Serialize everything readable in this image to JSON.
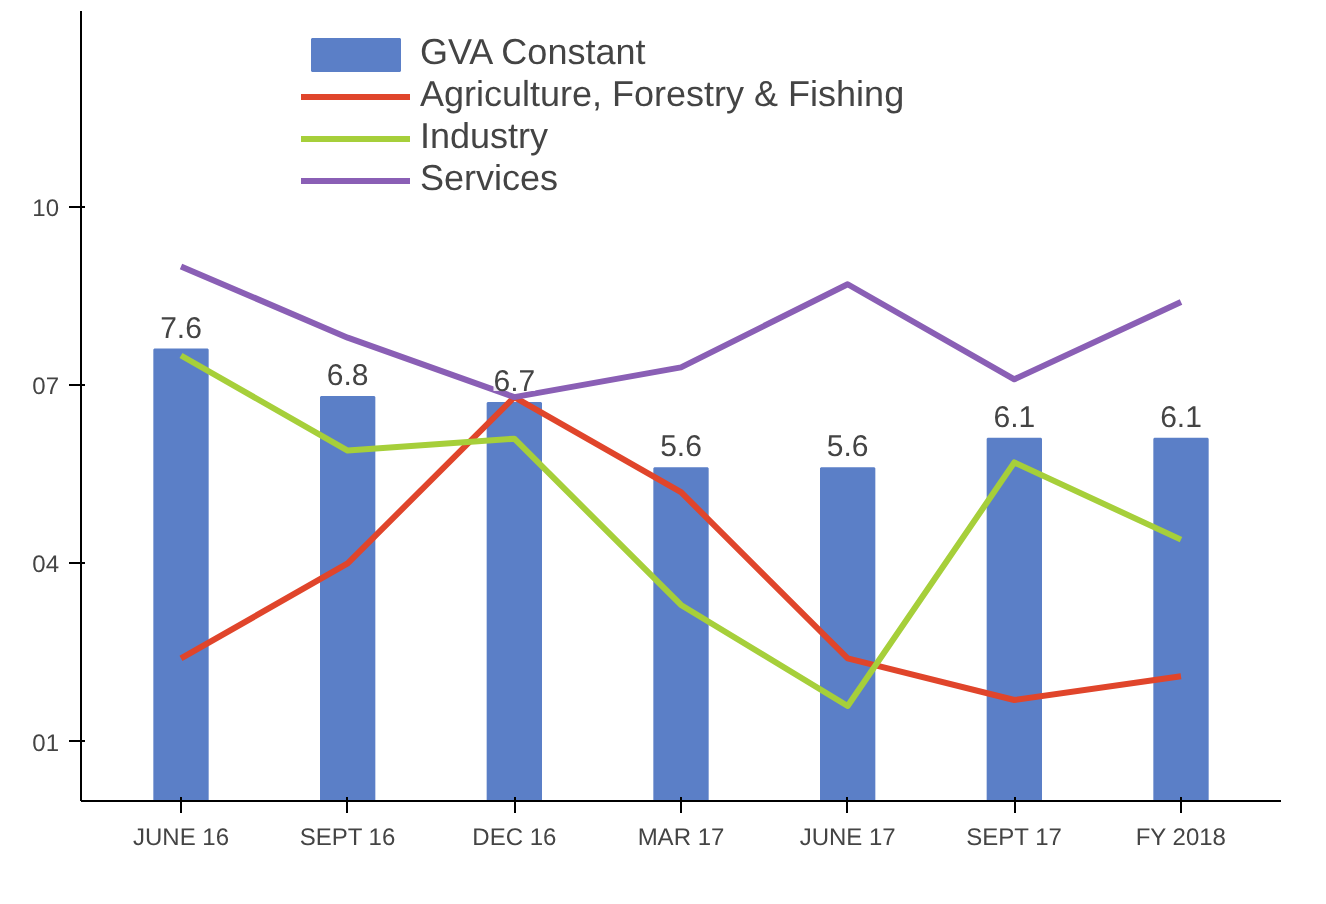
{
  "chart_data": {
    "type": "line",
    "categories": [
      "JUNE 16",
      "SEPT 16",
      "DEC 16",
      "MAR 17",
      "JUNE 17",
      "SEPT 17",
      "FY 2018"
    ],
    "series": [
      {
        "name": "GVA Constant",
        "type": "bar",
        "color": "#5b7fc7",
        "values": [
          7.6,
          6.8,
          6.7,
          5.6,
          5.6,
          6.1,
          6.1
        ],
        "value_labels": [
          "7.6",
          "6.8",
          "6.7",
          "5.6",
          "5.6",
          "6.1",
          "6.1"
        ]
      },
      {
        "name": "Agriculture, Forestry & Fishing",
        "color": "#e0452b",
        "values": [
          2.4,
          4.0,
          6.8,
          5.2,
          2.4,
          1.7,
          2.1
        ]
      },
      {
        "name": "Industry",
        "color": "#a6cf3a",
        "values": [
          7.5,
          5.9,
          6.1,
          3.3,
          1.6,
          5.7,
          4.4
        ]
      },
      {
        "name": "Services",
        "color": "#8a5fb5",
        "values": [
          9.0,
          7.8,
          6.8,
          7.3,
          8.7,
          7.1,
          8.4
        ]
      }
    ],
    "ylim": [
      0,
      13.3
    ],
    "yticks": [
      {
        "value": 1,
        "label": "01"
      },
      {
        "value": 4,
        "label": "04"
      },
      {
        "value": 7,
        "label": "07"
      },
      10
    ],
    "grid": false,
    "legend": "top",
    "marker": "none",
    "line_style": "solid"
  }
}
